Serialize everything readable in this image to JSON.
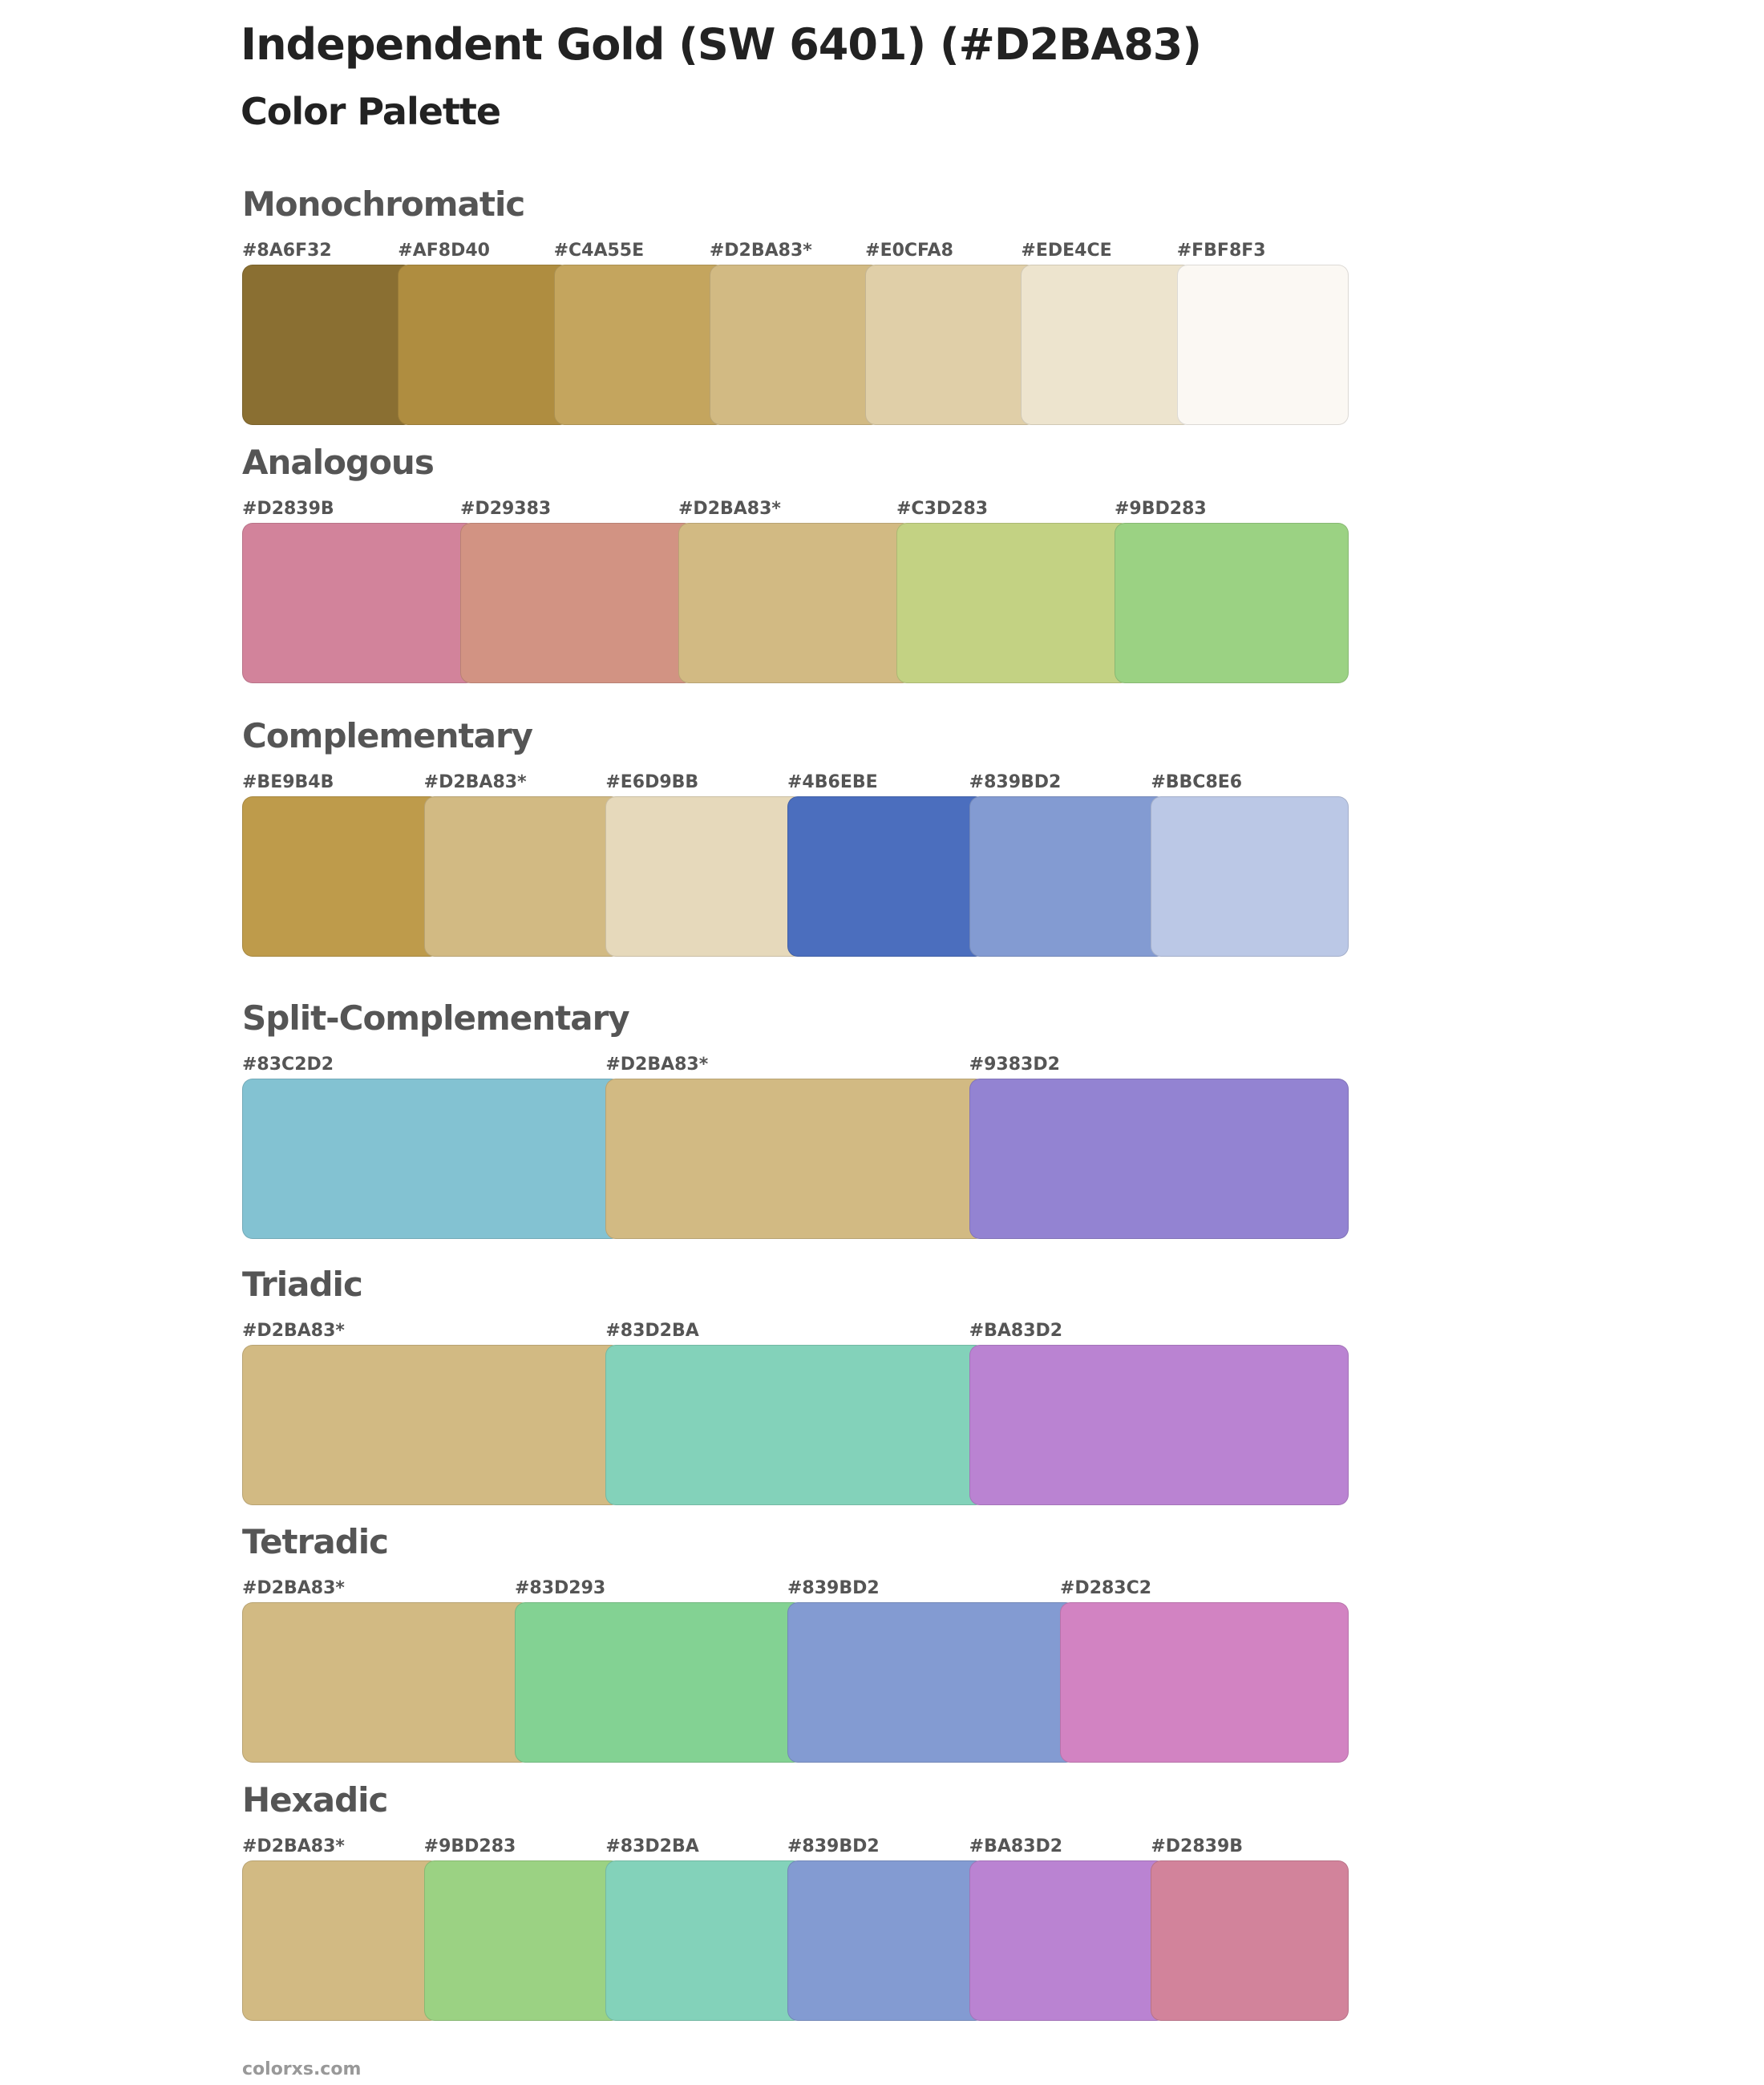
{
  "header": {
    "title": "Independent Gold (SW 6401) (#D2BA83)",
    "subtitle": "Color Palette"
  },
  "sections": [
    {
      "name": "Monochromatic",
      "swatches": [
        {
          "label": "#8A6F32",
          "color": "#8A6F32"
        },
        {
          "label": "#AF8D40",
          "color": "#AF8D40"
        },
        {
          "label": "#C4A55E",
          "color": "#C4A55E"
        },
        {
          "label": "#D2BA83*",
          "color": "#D2BA83"
        },
        {
          "label": "#E0CFA8",
          "color": "#E0CFA8"
        },
        {
          "label": "#EDE4CE",
          "color": "#EDE4CE"
        },
        {
          "label": "#FBF8F3",
          "color": "#FBF8F3"
        }
      ]
    },
    {
      "name": "Analogous",
      "swatches": [
        {
          "label": "#D2839B",
          "color": "#D2839B"
        },
        {
          "label": "#D29383",
          "color": "#D29383"
        },
        {
          "label": "#D2BA83*",
          "color": "#D2BA83"
        },
        {
          "label": "#C3D283",
          "color": "#C3D283"
        },
        {
          "label": "#9BD283",
          "color": "#9BD283"
        }
      ]
    },
    {
      "name": "Complementary",
      "swatches": [
        {
          "label": "#BE9B4B",
          "color": "#BE9B4B"
        },
        {
          "label": "#D2BA83*",
          "color": "#D2BA83"
        },
        {
          "label": "#E6D9BB",
          "color": "#E6D9BB"
        },
        {
          "label": "#4B6EBE",
          "color": "#4B6EBE"
        },
        {
          "label": "#839BD2",
          "color": "#839BD2"
        },
        {
          "label": "#BBC8E6",
          "color": "#BBC8E6"
        }
      ]
    },
    {
      "name": "Split-Complementary",
      "swatches": [
        {
          "label": "#83C2D2",
          "color": "#83C2D2"
        },
        {
          "label": "#D2BA83*",
          "color": "#D2BA83"
        },
        {
          "label": "#9383D2",
          "color": "#9383D2"
        }
      ]
    },
    {
      "name": "Triadic",
      "swatches": [
        {
          "label": "#D2BA83*",
          "color": "#D2BA83"
        },
        {
          "label": "#83D2BA",
          "color": "#83D2BA"
        },
        {
          "label": "#BA83D2",
          "color": "#BA83D2"
        }
      ]
    },
    {
      "name": "Tetradic",
      "swatches": [
        {
          "label": "#D2BA83*",
          "color": "#D2BA83"
        },
        {
          "label": "#83D293",
          "color": "#83D293"
        },
        {
          "label": "#839BD2",
          "color": "#839BD2"
        },
        {
          "label": "#D283C2",
          "color": "#D283C2"
        }
      ]
    },
    {
      "name": "Hexadic",
      "swatches": [
        {
          "label": "#D2BA83*",
          "color": "#D2BA83"
        },
        {
          "label": "#9BD283",
          "color": "#9BD283"
        },
        {
          "label": "#83D2BA",
          "color": "#83D2BA"
        },
        {
          "label": "#839BD2",
          "color": "#839BD2"
        },
        {
          "label": "#BA83D2",
          "color": "#BA83D2"
        },
        {
          "label": "#D2839B",
          "color": "#D2839B"
        }
      ]
    }
  ],
  "footer": {
    "text": "colorxs.com"
  }
}
